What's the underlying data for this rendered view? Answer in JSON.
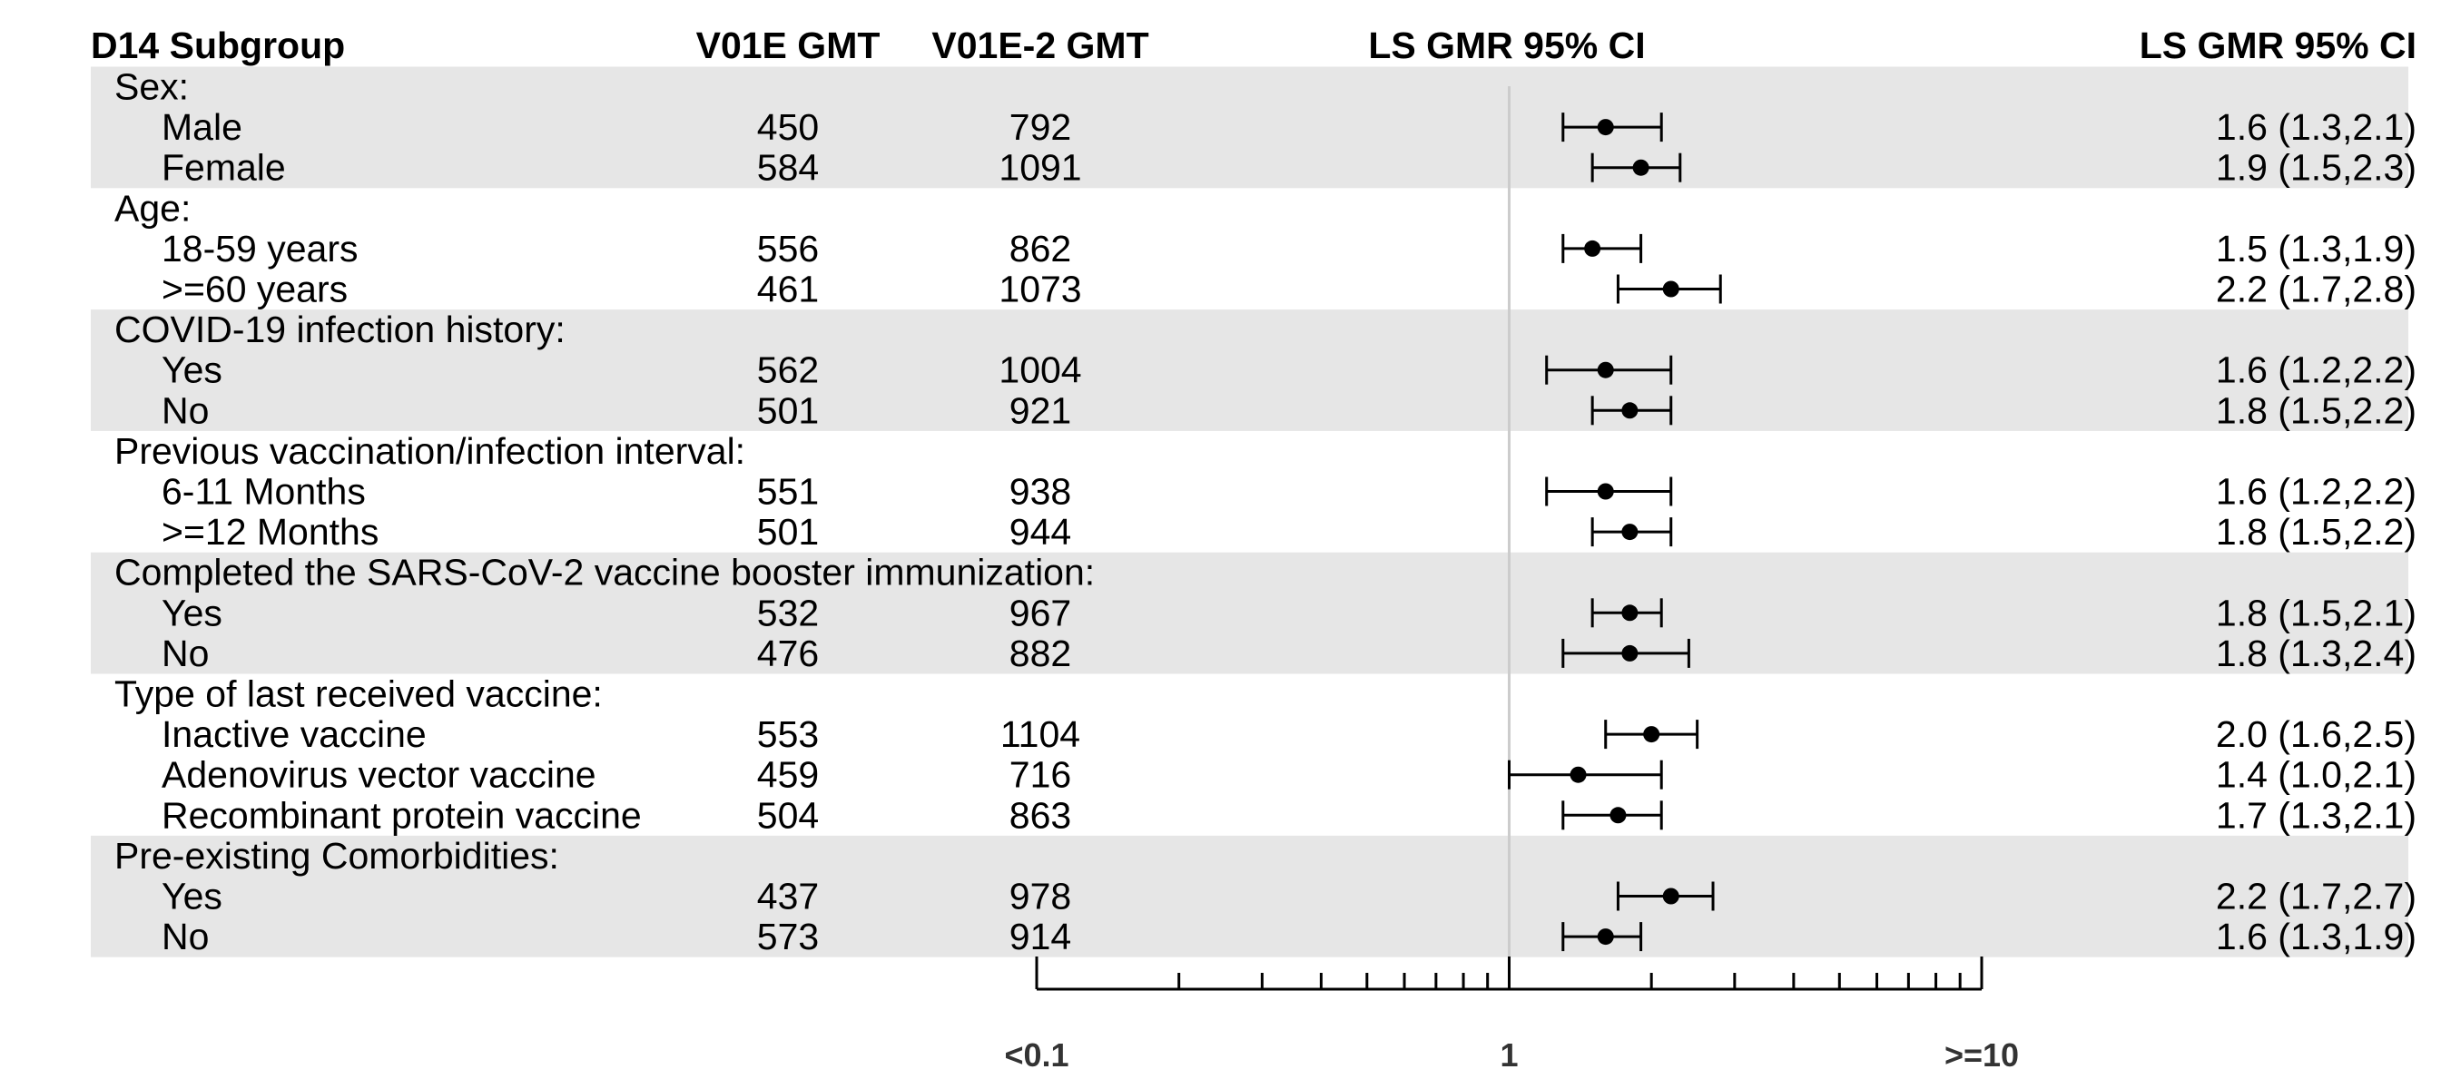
{
  "chart_data": {
    "type": "forest",
    "x_scale": "log10",
    "xlim": [
      0.1,
      10
    ],
    "reference_line": 1,
    "columns": {
      "subgroup": "D14 Subgroup",
      "gmt_a": "V01E GMT",
      "gmt_b": "V01E-2 GMT",
      "plot": "LS GMR 95% CI",
      "ci_text": "LS GMR 95% CI"
    },
    "x_tick_labels": [
      "<0.1",
      "1",
      ">=10"
    ],
    "shade_color": "#e6e6e6",
    "groups": [
      {
        "label": "Sex:",
        "shaded": true,
        "rows": [
          {
            "label": "Male",
            "gmt_a": "450",
            "gmt_b": "792",
            "est": 1.6,
            "lo": 1.3,
            "hi": 2.1,
            "ci_text": "1.6 (1.3,2.1)"
          },
          {
            "label": "Female",
            "gmt_a": "584",
            "gmt_b": "1091",
            "est": 1.9,
            "lo": 1.5,
            "hi": 2.3,
            "ci_text": "1.9 (1.5,2.3)"
          }
        ]
      },
      {
        "label": "Age:",
        "shaded": false,
        "rows": [
          {
            "label": "18-59 years",
            "gmt_a": "556",
            "gmt_b": "862",
            "est": 1.5,
            "lo": 1.3,
            "hi": 1.9,
            "ci_text": "1.5 (1.3,1.9)"
          },
          {
            "label": ">=60 years",
            "gmt_a": "461",
            "gmt_b": "1073",
            "est": 2.2,
            "lo": 1.7,
            "hi": 2.8,
            "ci_text": "2.2 (1.7,2.8)"
          }
        ]
      },
      {
        "label": "COVID-19 infection history:",
        "shaded": true,
        "rows": [
          {
            "label": "Yes",
            "gmt_a": "562",
            "gmt_b": "1004",
            "est": 1.6,
            "lo": 1.2,
            "hi": 2.2,
            "ci_text": "1.6 (1.2,2.2)"
          },
          {
            "label": "No",
            "gmt_a": "501",
            "gmt_b": "921",
            "est": 1.8,
            "lo": 1.5,
            "hi": 2.2,
            "ci_text": "1.8 (1.5,2.2)"
          }
        ]
      },
      {
        "label": "Previous vaccination/infection interval:",
        "shaded": false,
        "rows": [
          {
            "label": "6-11 Months",
            "gmt_a": "551",
            "gmt_b": "938",
            "est": 1.6,
            "lo": 1.2,
            "hi": 2.2,
            "ci_text": "1.6 (1.2,2.2)"
          },
          {
            "label": ">=12 Months",
            "gmt_a": "501",
            "gmt_b": "944",
            "est": 1.8,
            "lo": 1.5,
            "hi": 2.2,
            "ci_text": "1.8 (1.5,2.2)"
          }
        ]
      },
      {
        "label": "Completed the SARS-CoV-2 vaccine booster immunization:",
        "shaded": true,
        "rows": [
          {
            "label": "Yes",
            "gmt_a": "532",
            "gmt_b": "967",
            "est": 1.8,
            "lo": 1.5,
            "hi": 2.1,
            "ci_text": "1.8 (1.5,2.1)"
          },
          {
            "label": "No",
            "gmt_a": "476",
            "gmt_b": "882",
            "est": 1.8,
            "lo": 1.3,
            "hi": 2.4,
            "ci_text": "1.8 (1.3,2.4)"
          }
        ]
      },
      {
        "label": "Type of last received vaccine:",
        "shaded": false,
        "rows": [
          {
            "label": "Inactive vaccine",
            "gmt_a": "553",
            "gmt_b": "1104",
            "est": 2.0,
            "lo": 1.6,
            "hi": 2.5,
            "ci_text": "2.0 (1.6,2.5)"
          },
          {
            "label": "Adenovirus vector vaccine",
            "gmt_a": "459",
            "gmt_b": "716",
            "est": 1.4,
            "lo": 1.0,
            "hi": 2.1,
            "ci_text": "1.4 (1.0,2.1)"
          },
          {
            "label": "Recombinant protein vaccine",
            "gmt_a": "504",
            "gmt_b": "863",
            "est": 1.7,
            "lo": 1.3,
            "hi": 2.1,
            "ci_text": "1.7 (1.3,2.1)"
          }
        ]
      },
      {
        "label": "Pre-existing Comorbidities:",
        "shaded": true,
        "rows": [
          {
            "label": "Yes",
            "gmt_a": "437",
            "gmt_b": "978",
            "est": 2.2,
            "lo": 1.7,
            "hi": 2.7,
            "ci_text": "2.2 (1.7,2.7)"
          },
          {
            "label": "No",
            "gmt_a": "573",
            "gmt_b": "914",
            "est": 1.6,
            "lo": 1.3,
            "hi": 1.9,
            "ci_text": "1.6 (1.3,1.9)"
          }
        ]
      }
    ]
  }
}
